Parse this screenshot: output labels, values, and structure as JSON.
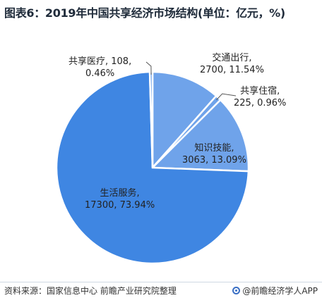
{
  "title": "图表6：2019年中国共享经济市场结构(单位：亿元，%)",
  "chart_data": {
    "type": "pie",
    "title": "图表6：2019年中国共享经济市场结构(单位：亿元，%)",
    "slices": [
      {
        "name": "交通出行",
        "value": 2700,
        "percent": "11.54%",
        "color": "#6fa3ea",
        "value_text": "2700, 11.54%"
      },
      {
        "name": "共享住宿",
        "value": 225,
        "percent": "0.96%",
        "color": "#6fa3ea",
        "value_text": "225, 0.96%"
      },
      {
        "name": "知识技能",
        "value": 3063,
        "percent": "13.09%",
        "color": "#6fa3ea",
        "value_text": "3063, 13.09%"
      },
      {
        "name": "生活服务",
        "value": 17300,
        "percent": "73.94%",
        "color": "#3f86e2",
        "value_text": "17300, 73.94%"
      },
      {
        "name": "共享医疗",
        "value": 108,
        "percent": "0.46%",
        "color": "#6fa3ea",
        "value_text": "108, 0.46%"
      }
    ]
  },
  "labels": {
    "jiaotong": {
      "line1": "交通出行,",
      "line2": "2700, 11.54%"
    },
    "zhusu": {
      "line1": "共享住宿,",
      "line2": "225, 0.96%"
    },
    "zhishi": {
      "line1": "知识技能,",
      "line2": "3063, 13.09%"
    },
    "shenghuo": {
      "line1": "生活服务,",
      "line2": "17300, 73.94%"
    },
    "yiliao": {
      "line1": "共享医疗, 108,",
      "line2": "0.46%"
    }
  },
  "footer": {
    "source": "资料来源：国家信息中心 前瞻产业研究院整理",
    "brand": "@前瞻经济学人APP",
    "brand_icon": "qianzhan-logo-icon"
  }
}
